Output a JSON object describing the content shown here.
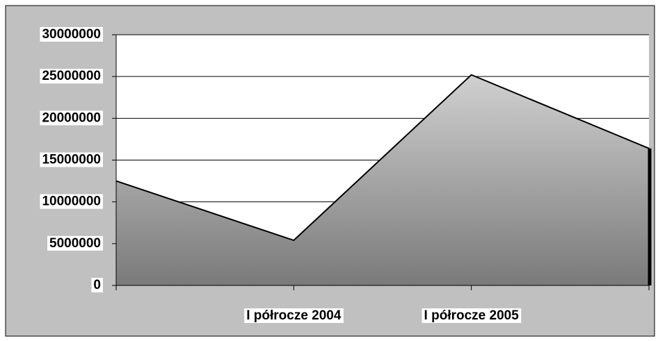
{
  "chart_data": {
    "type": "area",
    "categories": [
      null,
      "I półrocze 2004",
      "I półrocze 2005",
      null
    ],
    "values": [
      12500000,
      5400000,
      25200000,
      16400000
    ],
    "color": "#a0a0a0",
    "ylim": [
      0,
      30000000
    ],
    "yticks": [
      0,
      5000000,
      10000000,
      15000000,
      20000000,
      25000000,
      30000000
    ],
    "grid": true
  }
}
